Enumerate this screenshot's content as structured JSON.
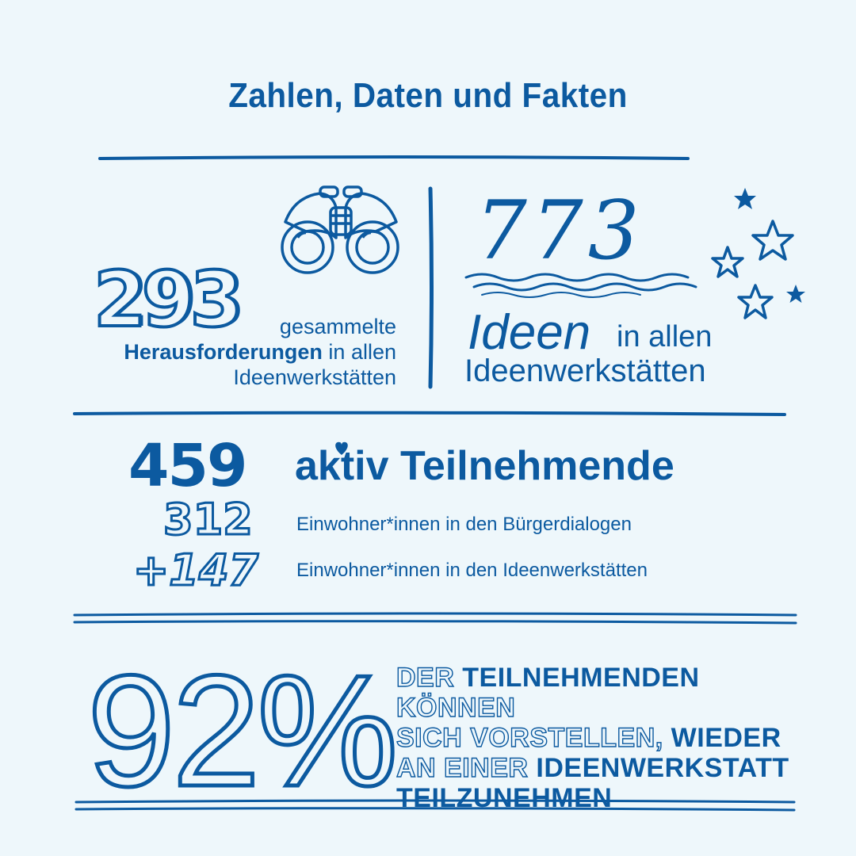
{
  "title": "Zahlen, Daten und Fakten",
  "stat_challenges": {
    "number": "293",
    "line1": "gesammelte",
    "bold": "Herausforderungen",
    "line2_rest": " in allen",
    "line3": "Ideenwerkstätten"
  },
  "stat_ideas": {
    "number": "773",
    "big_word": "Ideen",
    "rest1": "in allen",
    "line2": "Ideenwerkstätten"
  },
  "stat_participants": {
    "total": "459",
    "total_label": "aktiv Teilnehmende",
    "a_number": "312",
    "a_label": "Einwohner*innen in den Bürgerdialogen",
    "b_number": "+147",
    "b_label": "Einwohner*innen in den Ideenwerkstätten"
  },
  "stat_percent": {
    "number": "92%",
    "w1": "DER",
    "w2": "TEILNEHMENDEN",
    "w3": "KÖNNEN",
    "w4": "SICH VORSTELLEN,",
    "w5": "WIEDER",
    "w6": "AN EINER",
    "w7": "IDEENWERKSTATT",
    "w8": "TEILZUNEHMEN"
  },
  "colors": {
    "ink": "#0c5aa0",
    "background": "#eef7fb"
  }
}
